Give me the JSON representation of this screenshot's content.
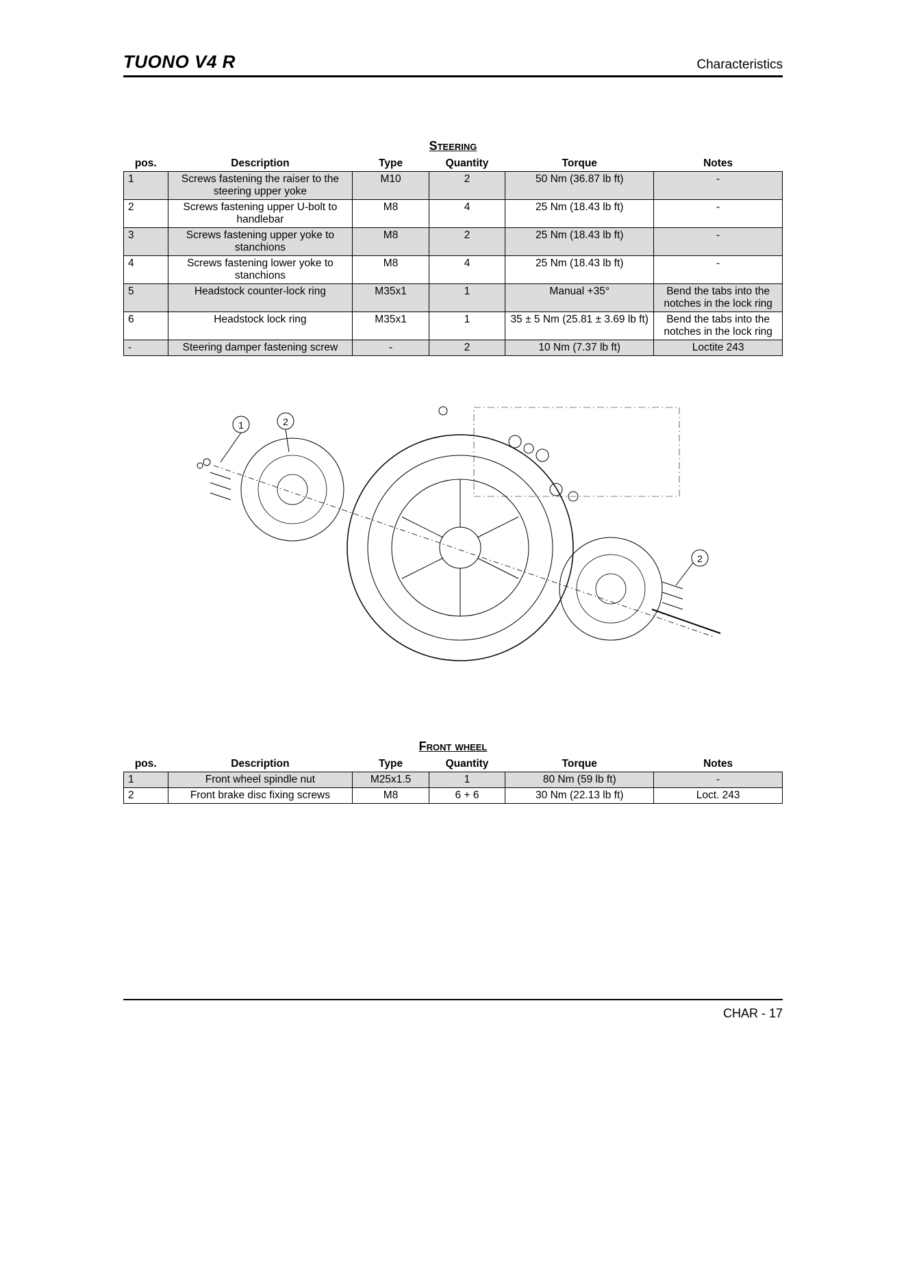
{
  "header": {
    "title": "TUONO V4 R",
    "section": "Characteristics"
  },
  "steering_table": {
    "title": "Steering",
    "columns": [
      "pos.",
      "Description",
      "Type",
      "Quantity",
      "Torque",
      "Notes"
    ],
    "rows": [
      {
        "pos": "1",
        "desc": "Screws fastening the raiser to the steering upper yoke",
        "type": "M10",
        "qty": "2",
        "torque": "50 Nm (36.87 lb ft)",
        "notes": "-",
        "alt": true
      },
      {
        "pos": "2",
        "desc": "Screws fastening upper U-bolt to handlebar",
        "type": "M8",
        "qty": "4",
        "torque": "25 Nm (18.43 lb ft)",
        "notes": "-",
        "alt": false
      },
      {
        "pos": "3",
        "desc": "Screws fastening upper yoke to stanchions",
        "type": "M8",
        "qty": "2",
        "torque": "25 Nm (18.43 lb ft)",
        "notes": "-",
        "alt": true
      },
      {
        "pos": "4",
        "desc": "Screws fastening lower yoke to stanchions",
        "type": "M8",
        "qty": "4",
        "torque": "25 Nm (18.43 lb ft)",
        "notes": "-",
        "alt": false
      },
      {
        "pos": "5",
        "desc": "Headstock counter-lock ring",
        "type": "M35x1",
        "qty": "1",
        "torque": "Manual +35°",
        "notes": "Bend the tabs into the notches in the lock ring",
        "alt": true
      },
      {
        "pos": "6",
        "desc": "Headstock lock ring",
        "type": "M35x1",
        "qty": "1",
        "torque": "35 ± 5 Nm (25.81 ± 3.69 lb ft)",
        "notes": "Bend the tabs into the notches in the lock ring",
        "alt": false
      },
      {
        "pos": "-",
        "desc": "Steering damper fastening screw",
        "type": "-",
        "qty": "2",
        "torque": "10 Nm (7.37 lb ft)",
        "notes": "Loctite 243",
        "alt": true
      }
    ]
  },
  "front_wheel_table": {
    "title": "Front wheel",
    "columns": [
      "pos.",
      "Description",
      "Type",
      "Quantity",
      "Torque",
      "Notes"
    ],
    "rows": [
      {
        "pos": "1",
        "desc": "Front wheel spindle nut",
        "type": "M25x1.5",
        "qty": "1",
        "torque": "80 Nm (59 lb ft)",
        "notes": "-",
        "alt": true
      },
      {
        "pos": "2",
        "desc": "Front brake disc fixing screws",
        "type": "M8",
        "qty": "6 + 6",
        "torque": "30 Nm (22.13 lb ft)",
        "notes": "Loct. 243",
        "alt": false
      }
    ]
  },
  "diagram": {
    "callouts": [
      "1",
      "2",
      "2"
    ]
  },
  "footer": {
    "page_label": "CHAR - 17"
  },
  "styling": {
    "alt_row_bg": "#dcdcdc",
    "border_color": "#000000",
    "header_rule_weight": 3,
    "footer_rule_weight": 2,
    "font_family": "Arial",
    "title_fontsize": 26,
    "section_fontsize": 19,
    "table_fontsize": 15.5
  }
}
